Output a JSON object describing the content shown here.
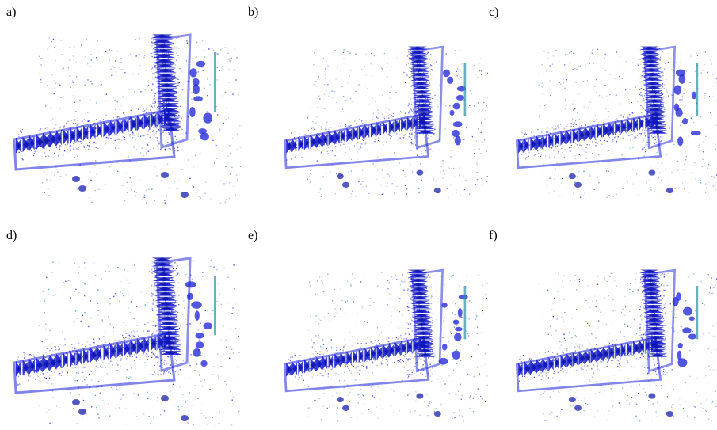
{
  "panels": [
    {
      "label": "a)"
    },
    {
      "label": "b)"
    },
    {
      "label": "c)"
    },
    {
      "label": "d)"
    },
    {
      "label": "e)"
    },
    {
      "label": "f)"
    }
  ],
  "colors": {
    "primary_blue": "#1a1fd6",
    "dark_blue": "#0a10a8",
    "teal_accent": "#2a8fa6",
    "light_dots": "#8fa0e8",
    "background": "#ffffff"
  }
}
